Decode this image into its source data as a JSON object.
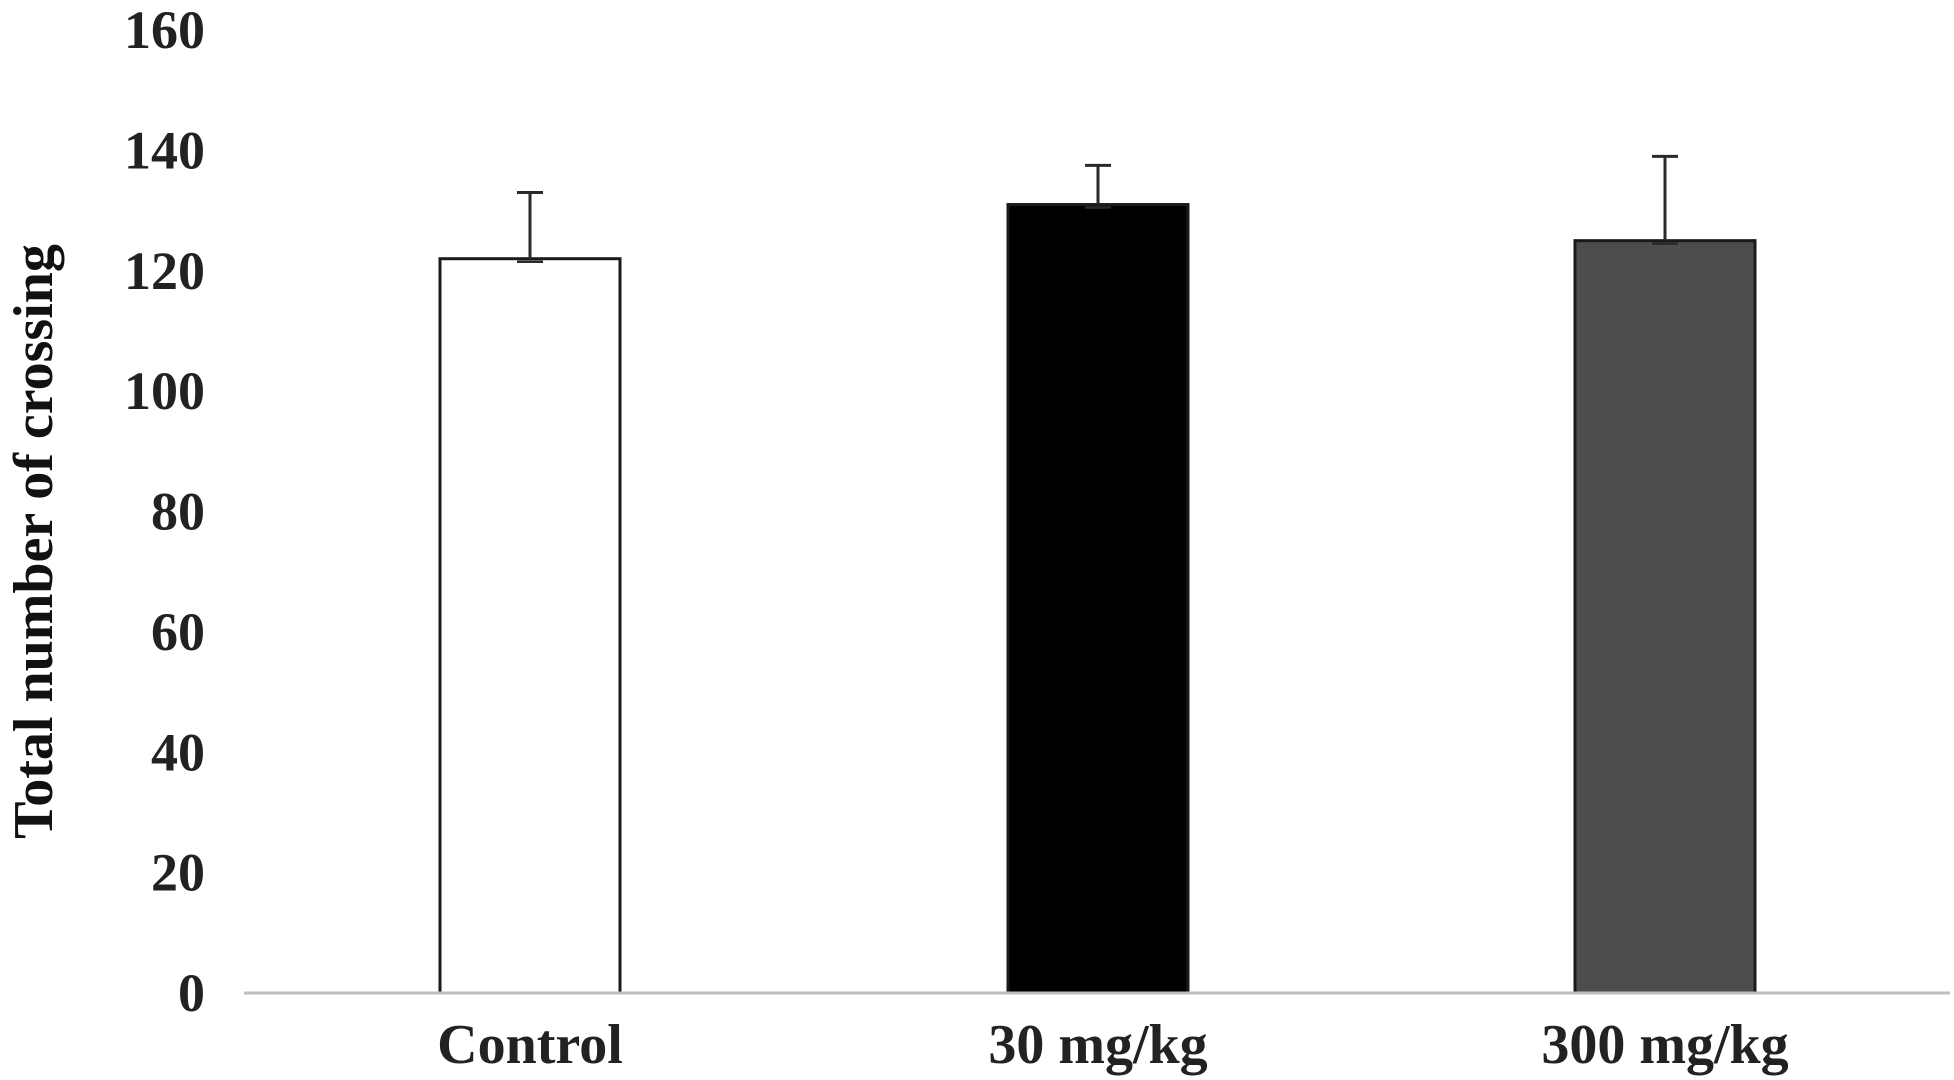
{
  "chart_data": {
    "type": "bar",
    "title": "",
    "xlabel": "",
    "ylabel": "Total number of crossing",
    "categories": [
      "Control",
      "30 mg/kg",
      "300 mg/kg"
    ],
    "values": [
      122,
      131,
      125
    ],
    "error_plus": [
      11,
      6.5,
      14
    ],
    "bar_colors": [
      "#ffffff",
      "#000000",
      "#4d4d4d"
    ],
    "bar_edge_color": "#1a1a1a",
    "ylim": [
      0,
      160
    ],
    "yticks": [
      "0",
      "20",
      "40",
      "60",
      "80",
      "100",
      "120",
      "140",
      "160"
    ],
    "grid": false,
    "legend": "none"
  }
}
